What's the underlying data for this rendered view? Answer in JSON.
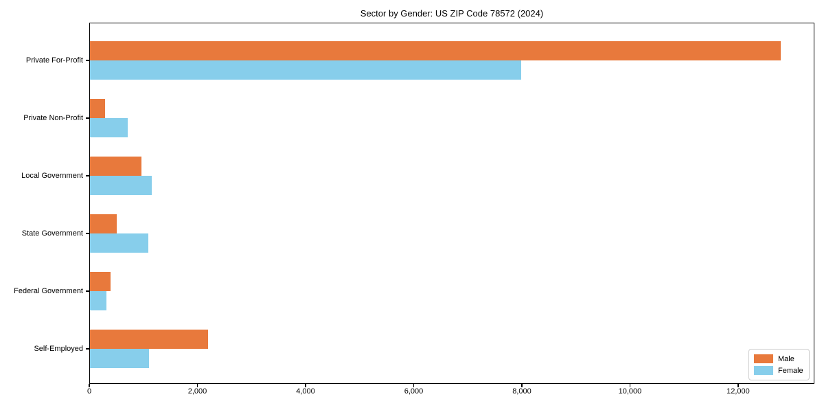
{
  "chart_data": {
    "type": "bar",
    "orientation": "horizontal",
    "title": "Sector by Gender: US ZIP Code 78572 (2024)",
    "categories": [
      "Private For-Profit",
      "Private Non-Profit",
      "Local Government",
      "State Government",
      "Federal Government",
      "Self-Employed"
    ],
    "series": [
      {
        "name": "Male",
        "color": "#e8793c",
        "values": [
          12780,
          280,
          950,
          490,
          380,
          2180
        ]
      },
      {
        "name": "Female",
        "color": "#87ceeb",
        "values": [
          7980,
          700,
          1140,
          1080,
          300,
          1090
        ]
      }
    ],
    "xlabel": "",
    "ylabel": "",
    "xlim": [
      0,
      13410
    ],
    "x_ticks": [
      0,
      2000,
      4000,
      6000,
      8000,
      10000,
      12000
    ],
    "x_tick_labels": [
      "0",
      "2,000",
      "4,000",
      "6,000",
      "8,000",
      "10,000",
      "12,000"
    ],
    "grid": false,
    "legend_position": "lower right",
    "background_color": "#ffffff",
    "axis_color": "#000000"
  }
}
